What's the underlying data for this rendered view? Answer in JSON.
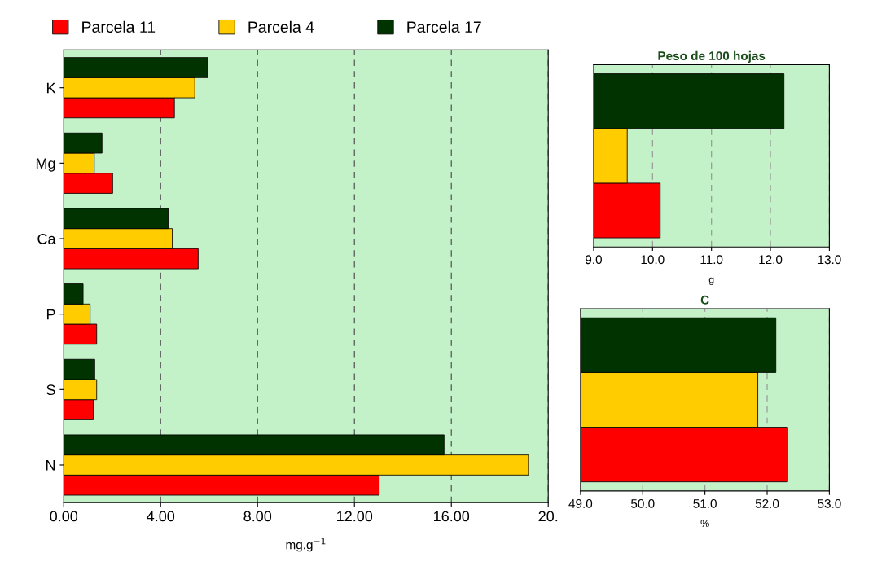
{
  "chart_data": [
    {
      "type": "bar",
      "orientation": "horizontal",
      "xlabel": "mg.g$^{−1}$",
      "categories": [
        "K",
        "Mg",
        "Ca",
        "P",
        "S",
        "N"
      ],
      "legend": "top",
      "grid": "x",
      "xlim": [
        0,
        20
      ],
      "xticks": [
        {
          "value": 0,
          "label": "0.00"
        },
        {
          "value": 4,
          "label": "4.00"
        },
        {
          "value": 8,
          "label": "8.00"
        },
        {
          "value": 12,
          "label": "12.00"
        },
        {
          "value": 16,
          "label": "16.00"
        },
        {
          "value": 20,
          "label": "20."
        }
      ],
      "series": [
        {
          "name": "Parcela 11",
          "color": "#ff0000",
          "values": [
            4.57,
            2.02,
            5.55,
            1.36,
            1.22,
            13.02
          ]
        },
        {
          "name": "Parcela 4",
          "color": "#ffcc00",
          "values": [
            5.41,
            1.26,
            4.48,
            1.09,
            1.36,
            19.18
          ]
        },
        {
          "name": "Parcela 17",
          "color": "#003300",
          "values": [
            5.95,
            1.58,
            4.31,
            0.8,
            1.28,
            15.7
          ]
        }
      ]
    },
    {
      "type": "bar",
      "orientation": "horizontal",
      "title": "Peso de 100 hojas",
      "xlabel": "g",
      "categories": [
        null
      ],
      "grid": "x",
      "tick_labels": "x",
      "xlim": [
        9,
        13
      ],
      "xticks": [
        {
          "value": 9,
          "label": "9.0"
        },
        {
          "value": 10,
          "label": "10.0"
        },
        {
          "value": 11,
          "label": "11.0"
        },
        {
          "value": 12,
          "label": "12.0"
        },
        {
          "value": 13,
          "label": "13.0"
        }
      ],
      "series": [
        {
          "color": "#ff0000",
          "values": [
            10.13
          ]
        },
        {
          "color": "#ffcc00",
          "values": [
            9.57
          ]
        },
        {
          "color": "#003300",
          "values": [
            12.23
          ]
        }
      ]
    },
    {
      "type": "bar",
      "orientation": "horizontal",
      "title": "C",
      "xlabel": "%",
      "categories": [
        null
      ],
      "grid": "x",
      "tick_labels": "x",
      "xlim": [
        49,
        53
      ],
      "xticks": [
        {
          "value": 49,
          "label": "49.0"
        },
        {
          "value": 50,
          "label": "50.0"
        },
        {
          "value": 51,
          "label": "51.0"
        },
        {
          "value": 52,
          "label": "52.0"
        },
        {
          "value": 53,
          "label": "53.0"
        }
      ],
      "series": [
        {
          "color": "#ff0000",
          "values": [
            52.33
          ]
        },
        {
          "color": "#ffcc00",
          "values": [
            51.85
          ]
        },
        {
          "color": "#003300",
          "values": [
            52.14
          ]
        }
      ]
    }
  ]
}
